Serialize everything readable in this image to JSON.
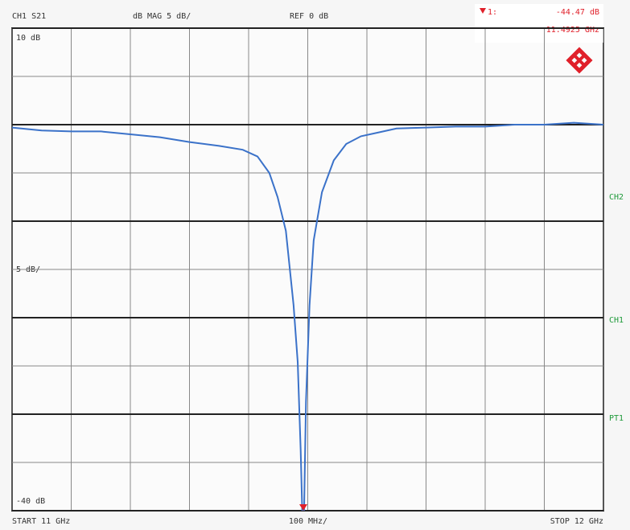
{
  "chart_data": {
    "type": "line",
    "header": [
      "CH1 S21",
      "dB MAG 5 dB/",
      "REF 0 dB"
    ],
    "marker": {
      "label": "1:",
      "value_label": "-44.47 dB",
      "freq_label": "11.4925 GHz",
      "x": 11.4925,
      "y": -44.47
    },
    "top_label": "10 dB",
    "scale_label": "5 dB/",
    "bottom_label": "-40 dB",
    "start_label": "START 11 GHz",
    "span_label": "100 MHz/",
    "stop_label": "STOP 12 GHz",
    "side_labels": [
      "CH2",
      "CH1",
      "PT1"
    ],
    "xlim": [
      11,
      12
    ],
    "ylim": [
      -40,
      10
    ],
    "xticks": [
      11,
      11.1,
      11.2,
      11.3,
      11.4,
      11.5,
      11.6,
      11.7,
      11.8,
      11.9,
      12
    ],
    "yticks": [
      10,
      5,
      0,
      -5,
      -10,
      -15,
      -20,
      -25,
      -30,
      -35,
      -40
    ],
    "grid": true,
    "x": [
      11.0,
      11.05,
      11.1,
      11.15,
      11.2,
      11.25,
      11.3,
      11.35,
      11.39,
      11.415,
      11.435,
      11.449,
      11.463,
      11.476,
      11.483,
      11.488,
      11.4925,
      11.497,
      11.503,
      11.51,
      11.524,
      11.544,
      11.565,
      11.59,
      11.62,
      11.65,
      11.7,
      11.75,
      11.8,
      11.85,
      11.9,
      11.95,
      12.0
    ],
    "series": [
      {
        "name": "S21",
        "color": "#3b72c9",
        "values": [
          -0.3,
          -0.6,
          -0.7,
          -0.7,
          -1.0,
          -1.3,
          -1.8,
          -2.2,
          -2.6,
          -3.3,
          -5,
          -7.5,
          -11,
          -18.7,
          -24.6,
          -33.7,
          -44.47,
          -28.7,
          -18.7,
          -12,
          -7,
          -3.7,
          -2,
          -1.2,
          -0.8,
          -0.4,
          -0.3,
          -0.2,
          -0.2,
          0,
          0,
          0.2,
          0
        ]
      }
    ]
  }
}
